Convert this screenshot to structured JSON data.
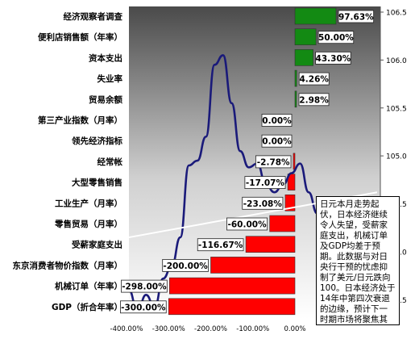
{
  "chart_data": {
    "type": "bar",
    "orientation": "horizontal",
    "categories": [
      "经济观察者调查",
      "便利店销售额（年率）",
      "资本支出",
      "失业率",
      "贸易余额",
      "第三产业指数（月率）",
      "领先经济指标",
      "经常帐",
      "大型零售销售",
      "工业生产（月率）",
      "零售贸易（月率）",
      "受薪家庭支出",
      "东京消费者物价指数（月率）",
      "机械订单（年率）",
      "GDP（折合年率）"
    ],
    "values": [
      97.63,
      50.0,
      43.3,
      4.26,
      2.98,
      0.0,
      0.0,
      -2.78,
      -17.07,
      -23.08,
      -60.0,
      -116.67,
      -200.0,
      -298.0,
      -300.0
    ],
    "value_labels": [
      "97.63%",
      "50.00%",
      "43.30%",
      "4.26%",
      "2.98%",
      "0.00%",
      "0.00%",
      "-2.78%",
      "-17.07%",
      "-23.08%",
      "-60.00%",
      "-116.67%",
      "-200.00%",
      "-298.00%",
      "-300.00%"
    ],
    "x_ticks": [
      "-400.00%",
      "-300.00%",
      "-200.00%",
      "-100.00%",
      "0.00%"
    ],
    "xlim": [
      -400,
      0
    ],
    "y2_ticks": [
      "103.5",
      "104.0",
      "104.5",
      "105.0",
      "105.5",
      "106.0",
      "106.5"
    ],
    "y2lim": [
      103.3,
      106.5
    ],
    "line_series": {
      "values": [
        103.6,
        103.38,
        103.55,
        103.42,
        103.72,
        103.85,
        104.15,
        104.9,
        104.95,
        105.2,
        105.95,
        106.05,
        105.55,
        105.05,
        104.88,
        104.92,
        104.7,
        104.62,
        104.7,
        104.82,
        104.92,
        104.62,
        104.4,
        104.55,
        104.2,
        104.18,
        104.05,
        103.95,
        104.25,
        104.2
      ]
    },
    "trend_line": {
      "start": 104.15,
      "end": 104.62
    },
    "colors": {
      "positive": "#138a13",
      "negative": "#ff0000",
      "line": "#1a1a7a",
      "trend": "#ffffff"
    }
  },
  "note": "日元本月走势起伏，日本经济继续令人失望，受薪家庭支出，机械订单及GDP均差于预期。此数据与对日央行干预的忧虑抑制了美元/日元跌向100。日本经济处于14年中第四次衰退的边缘，预计下一时期市场将聚焦其经济基本面。"
}
